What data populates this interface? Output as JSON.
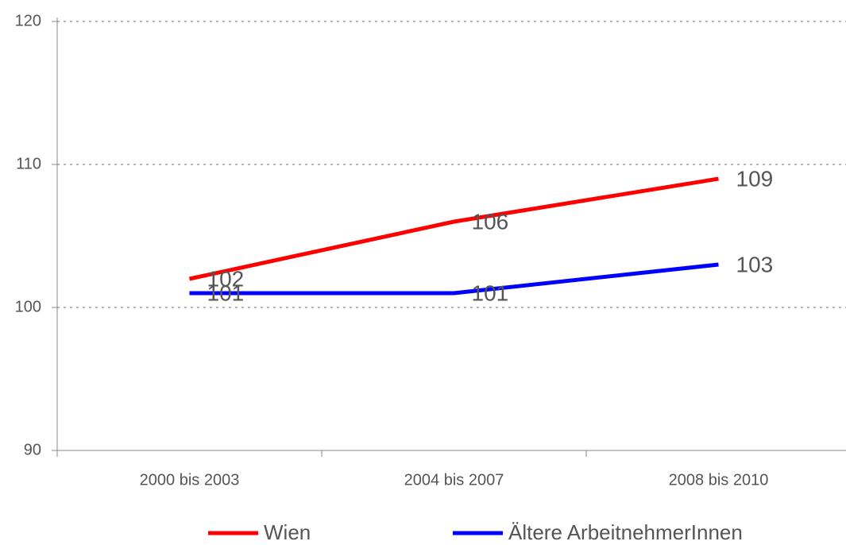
{
  "chart_data": {
    "type": "line",
    "categories": [
      "2000 bis 2003",
      "2004 bis 2007",
      "2008 bis 2010"
    ],
    "series": [
      {
        "name": "Wien",
        "color": "#ff0000",
        "values": [
          102,
          106,
          109
        ]
      },
      {
        "name": "Ältere ArbeitnehmerInnen",
        "color": "#0000ff",
        "values": [
          101,
          101,
          103
        ]
      }
    ],
    "ylim": [
      90,
      120
    ],
    "yticks": [
      90,
      100,
      110,
      120
    ],
    "grid": true,
    "legend": "bottom"
  }
}
